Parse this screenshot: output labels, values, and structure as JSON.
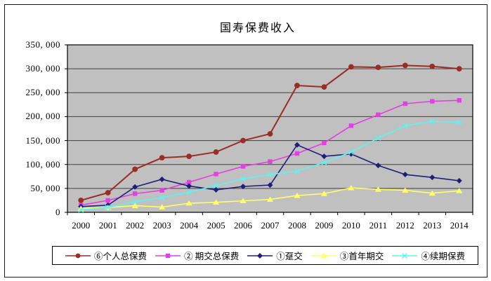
{
  "title": "国寿保费收入",
  "chart_data": {
    "type": "line",
    "title": "国寿保费收入",
    "x": [
      2000,
      2001,
      2002,
      2003,
      2004,
      2005,
      2006,
      2007,
      2008,
      2009,
      2010,
      2011,
      2012,
      2013,
      2014
    ],
    "x_tick_labels": [
      "2000",
      "2001",
      "2002",
      "2003",
      "2004",
      "2005",
      "2006",
      "2007",
      "2008",
      "2009",
      "2010",
      "2011",
      "2012",
      "2013",
      "2014"
    ],
    "ylim": [
      0,
      350000
    ],
    "y_tick_interval": 50000,
    "y_tick_labels": [
      "0",
      "50, 000",
      "100, 000",
      "150, 000",
      "200, 000",
      "250, 000",
      "300, 000",
      "350, 000"
    ],
    "grid": true,
    "plot_bg_color": "#c0c0c0",
    "gridline_color": "#404040",
    "legend_position": "bottom",
    "series": [
      {
        "name": "⑥个人总保费",
        "marker": "circle",
        "color": "#9a2d25",
        "values": [
          25000,
          41000,
          90000,
          114000,
          117000,
          126000,
          150000,
          164000,
          265000,
          262000,
          304000,
          303000,
          307000,
          305000,
          300000
        ]
      },
      {
        "name": "② 期交总保费",
        "marker": "square",
        "color": "#e33fe3",
        "values": [
          15000,
          25000,
          39000,
          46000,
          63000,
          80000,
          96000,
          106000,
          123000,
          145000,
          181000,
          204000,
          227000,
          232000,
          234000
        ]
      },
      {
        "name": "①趸交",
        "marker": "diamond",
        "color": "#1f1f7a",
        "values": [
          12000,
          15000,
          53000,
          69000,
          55000,
          47000,
          54000,
          57000,
          141000,
          117000,
          122000,
          98000,
          79000,
          73000,
          66000
        ]
      },
      {
        "name": "③首年期交",
        "marker": "triangle",
        "color": "#ffff66",
        "values": [
          8000,
          10000,
          14000,
          11000,
          19000,
          21000,
          24000,
          27000,
          35000,
          39000,
          51000,
          48000,
          46000,
          40000,
          45000
        ]
      },
      {
        "name": "④续期保费",
        "marker": "x",
        "color": "#5ef2f2",
        "values": [
          5000,
          10000,
          22000,
          31000,
          42000,
          56000,
          70000,
          79000,
          86000,
          104000,
          126000,
          155000,
          181000,
          190000,
          188000
        ]
      }
    ]
  }
}
